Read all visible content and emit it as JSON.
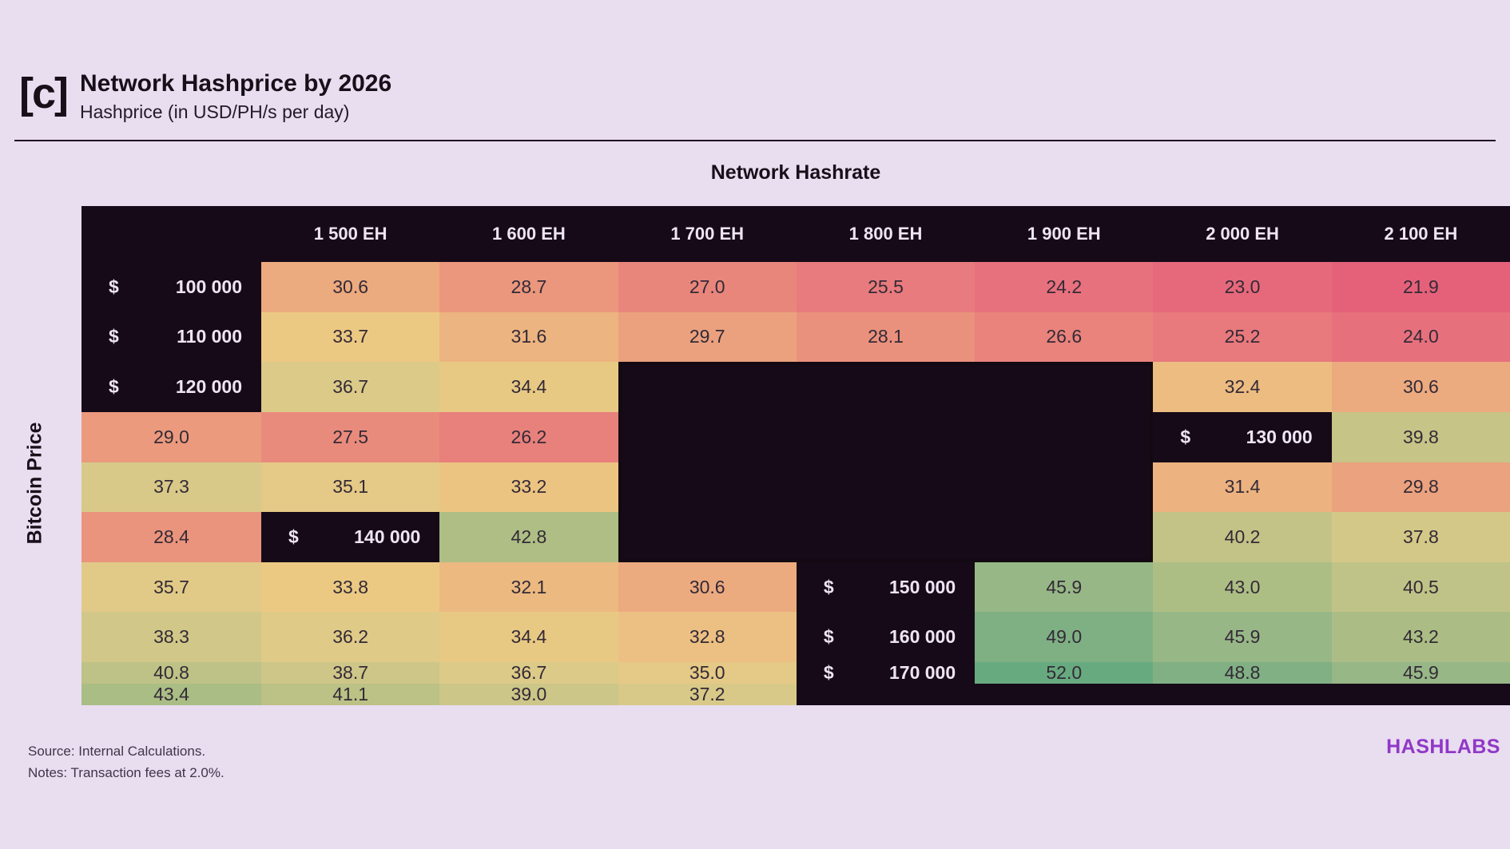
{
  "page": {
    "logo_mark": "[c]",
    "footer": {
      "source": "Source: Internal Calculations.",
      "notes": "Notes: Transaction fees at 2.0%.",
      "brand": "HASHLABS"
    },
    "colors": {
      "background": "#e9ddf0",
      "table_dark": "#160a18",
      "on_dark_text": "#ede4f4",
      "cell_text": "#332a36",
      "brand_purple": "#9038c8"
    }
  },
  "chart_data": {
    "type": "heatmap",
    "title": "Network Hashprice by 2026",
    "subtitle": "Hashprice (in USD/PH/s per day)",
    "x_axis_label": "Network Hashrate",
    "y_axis_label": "Bitcoin Price",
    "row_currency_prefix": "$",
    "columns": [
      "1 500 EH",
      "1 600 EH",
      "1 700 EH",
      "1 800 EH",
      "1 900 EH",
      "2 000 EH",
      "2 100 EH"
    ],
    "rows": [
      "100 000",
      "110 000",
      "120 000",
      "130 000",
      "140 000",
      "150 000",
      "160 000",
      "170 000"
    ],
    "values": [
      [
        30.6,
        28.7,
        27.0,
        25.5,
        24.2,
        23.0,
        21.9
      ],
      [
        33.7,
        31.6,
        29.7,
        28.1,
        26.6,
        25.2,
        24.0
      ],
      [
        36.7,
        34.4,
        32.4,
        30.6,
        29.0,
        27.5,
        26.2
      ],
      [
        39.8,
        37.3,
        35.1,
        33.2,
        31.4,
        29.8,
        28.4
      ],
      [
        42.8,
        40.2,
        37.8,
        35.7,
        33.8,
        32.1,
        30.6
      ],
      [
        45.9,
        43.0,
        40.5,
        38.3,
        36.2,
        34.4,
        32.8
      ],
      [
        49.0,
        45.9,
        43.2,
        40.8,
        38.7,
        36.7,
        35.0
      ],
      [
        52.0,
        48.8,
        45.9,
        43.4,
        41.1,
        39.0,
        37.2
      ]
    ],
    "value_decimals": 1,
    "value_range": [
      21.9,
      52.0
    ],
    "highlight_box": {
      "columns": [
        "1 700 EH",
        "1 800 EH",
        "1 900 EH"
      ],
      "rows": [
        "120 000",
        "130 000",
        "140 000",
        "150 000"
      ],
      "col_start_index": 2,
      "col_end_index": 4,
      "row_start_index": 2,
      "row_end_index": 5
    },
    "colormap_stops": [
      [
        21.9,
        "#e5617a"
      ],
      [
        24.2,
        "#e7717d"
      ],
      [
        27.0,
        "#e9867c"
      ],
      [
        30.6,
        "#ecaa7f"
      ],
      [
        33.7,
        "#ecc983"
      ],
      [
        36.7,
        "#dcca89"
      ],
      [
        39.8,
        "#c6c487"
      ],
      [
        42.8,
        "#aebe85"
      ],
      [
        45.9,
        "#97b787"
      ],
      [
        49.0,
        "#7fb084"
      ],
      [
        52.0,
        "#68aa80"
      ]
    ]
  }
}
